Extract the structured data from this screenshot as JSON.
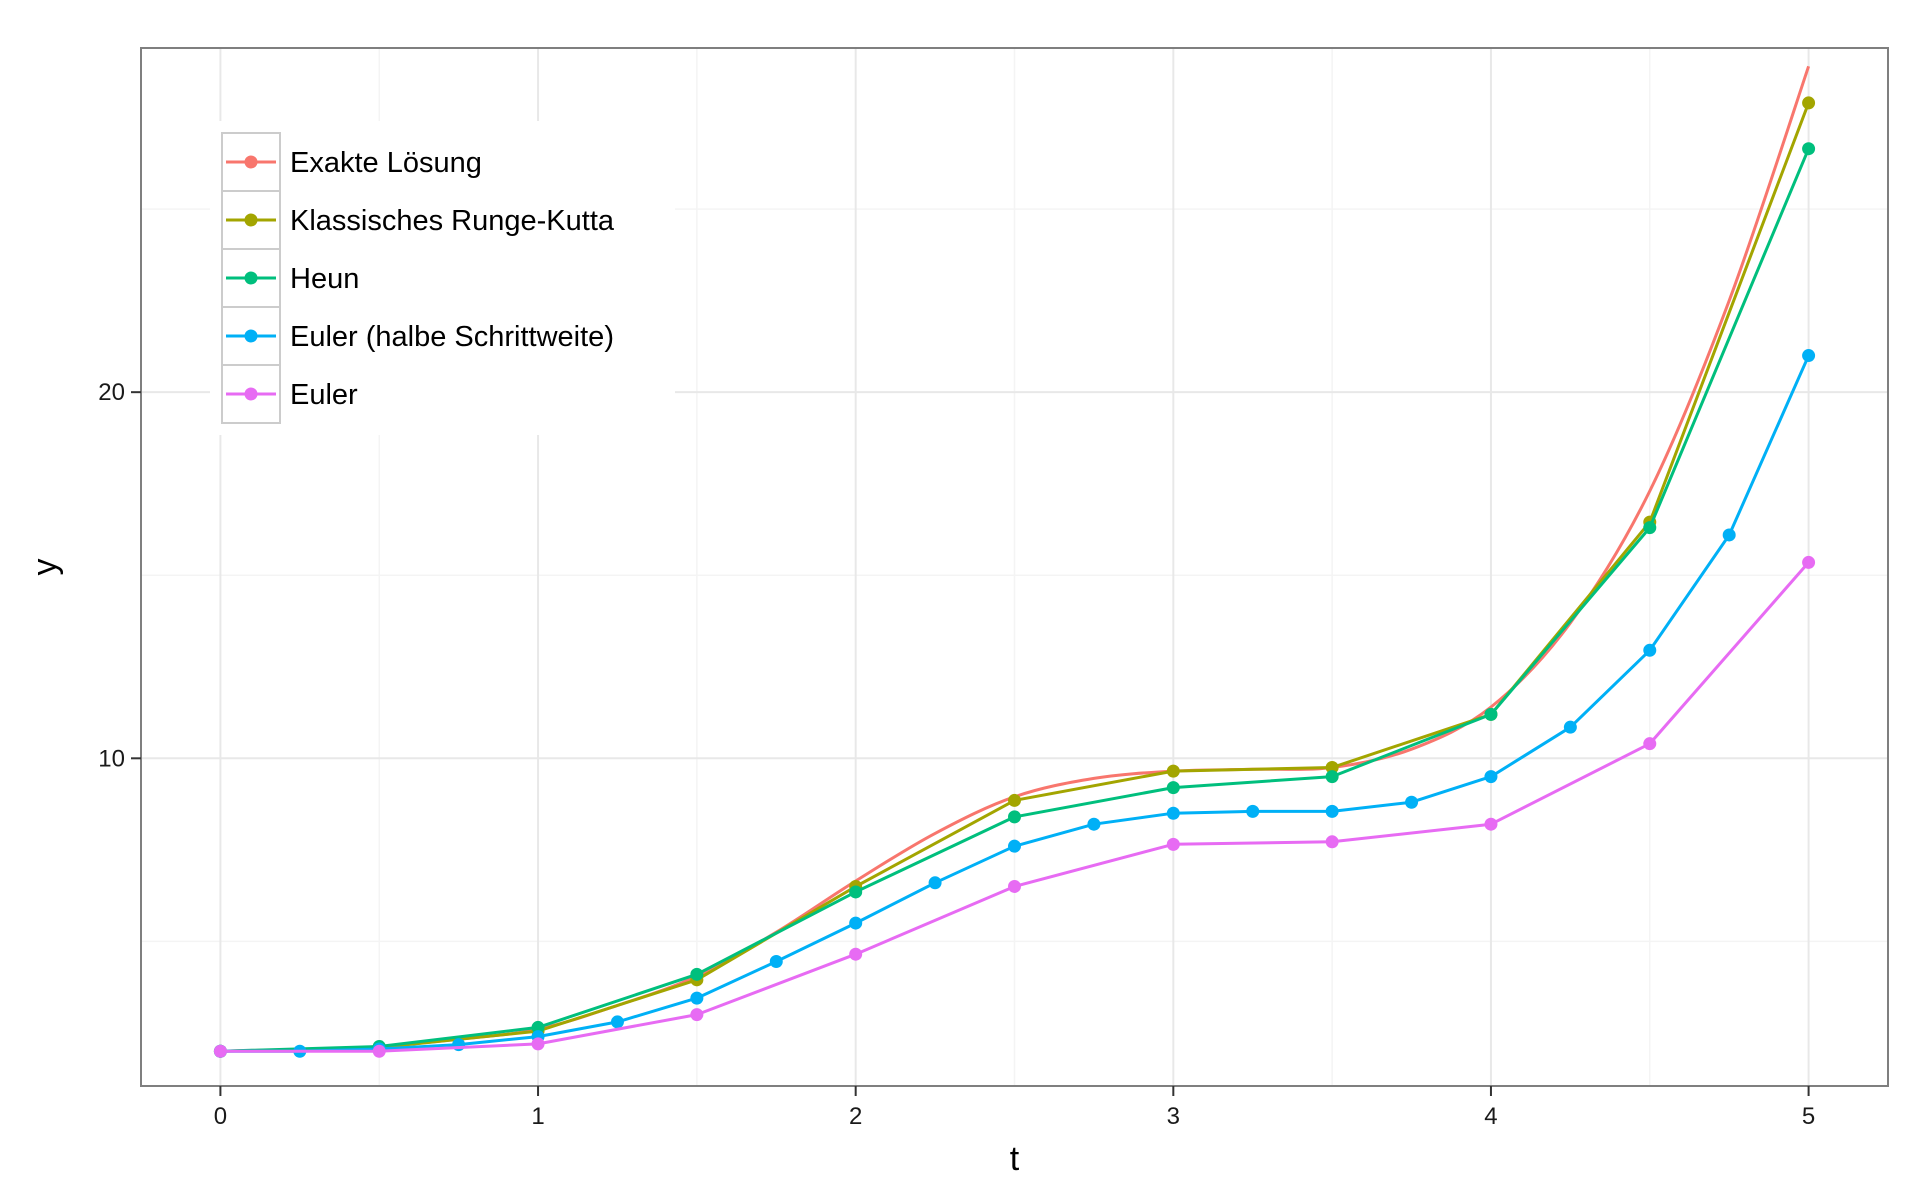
{
  "chart_data": {
    "type": "line",
    "title": "",
    "xlabel": "t",
    "ylabel": "y",
    "xlim": [
      -0.25,
      5.25
    ],
    "ylim": [
      1.05,
      29.4
    ],
    "x_ticks": [
      0,
      1,
      2,
      3,
      4,
      5
    ],
    "x_tick_labels": [
      "0",
      "1",
      "2",
      "3",
      "4",
      "5"
    ],
    "y_ticks": [
      10,
      20
    ],
    "y_tick_labels": [
      "10",
      "20"
    ],
    "y_minor_ticks": [
      5,
      15,
      25
    ],
    "grid": true,
    "legend_position": "top-left",
    "series": [
      {
        "name": "Exakte Lösung",
        "color": "#F8766D",
        "markers": false,
        "x": [
          0,
          0.25,
          0.5,
          0.75,
          1,
          1.25,
          1.5,
          1.75,
          2,
          2.25,
          2.5,
          2.75,
          3,
          3.25,
          3.5,
          3.75,
          4,
          4.25,
          4.5,
          4.75,
          5
        ],
        "y": [
          2.0,
          2.04,
          2.13,
          2.33,
          2.6,
          3.25,
          4.05,
          5.25,
          6.65,
          7.95,
          8.95,
          9.45,
          9.65,
          9.7,
          9.75,
          10.25,
          11.4,
          13.7,
          17.3,
          22.5,
          28.9
        ]
      },
      {
        "name": "Klassisches Runge-Kutta",
        "color": "#A3A500",
        "markers": true,
        "x": [
          0,
          0.5,
          1,
          1.5,
          2,
          2.5,
          3,
          3.5,
          4,
          4.5,
          5
        ],
        "y": [
          2.0,
          2.1,
          2.55,
          3.95,
          6.5,
          8.85,
          9.65,
          9.75,
          11.2,
          16.45,
          27.9
        ]
      },
      {
        "name": "Heun",
        "color": "#00BF7D",
        "markers": true,
        "x": [
          0,
          0.5,
          1,
          1.5,
          2,
          2.5,
          3,
          3.5,
          4,
          4.5,
          5
        ],
        "y": [
          2.0,
          2.13,
          2.65,
          4.1,
          6.35,
          8.4,
          9.2,
          9.5,
          11.2,
          16.3,
          26.65
        ]
      },
      {
        "name": "Euler (halbe Schrittweite)",
        "color": "#00B0F6",
        "markers": true,
        "x": [
          0,
          0.25,
          0.5,
          0.75,
          1,
          1.25,
          1.5,
          1.75,
          2,
          2.25,
          2.5,
          2.75,
          3,
          3.25,
          3.5,
          3.75,
          4,
          4.25,
          4.5,
          4.75,
          5
        ],
        "y": [
          2.0,
          2.0,
          2.06,
          2.18,
          2.4,
          2.8,
          3.45,
          4.45,
          5.5,
          6.6,
          7.6,
          8.2,
          8.5,
          8.55,
          8.55,
          8.8,
          9.5,
          10.85,
          12.95,
          16.1,
          21.0
        ]
      },
      {
        "name": "Euler",
        "color": "#E76BF3",
        "markers": true,
        "x": [
          0,
          0.5,
          1,
          1.5,
          2,
          2.5,
          3,
          3.5,
          4,
          4.5,
          5
        ],
        "y": [
          2.0,
          2.0,
          2.2,
          3.0,
          4.65,
          6.5,
          7.65,
          7.72,
          8.2,
          10.4,
          15.35
        ]
      }
    ]
  }
}
